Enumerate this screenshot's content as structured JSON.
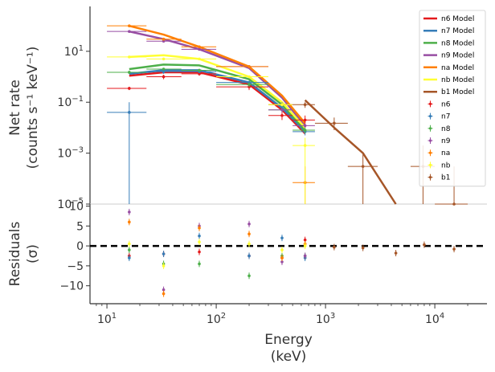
{
  "chart_data": [
    {
      "type": "line",
      "panel": "top",
      "xscale": "log",
      "yscale": "log",
      "xlim": [
        7,
        30000
      ],
      "ylim": [
        1e-05,
        500
      ],
      "ylabel_line1": "Net rate",
      "ylabel_line2": "(counts s⁻¹ keV⁻¹)",
      "yticks": [
        {
          "value": 10,
          "label": "10",
          "sup": "1"
        },
        {
          "value": 0.1,
          "label": "10",
          "sup": "−1"
        },
        {
          "value": 0.001,
          "label": "10",
          "sup": "−3"
        },
        {
          "value": 1e-05,
          "label": "10",
          "sup": "−5"
        }
      ],
      "legend_position": "top-right",
      "models": [
        {
          "name": "n6 Model",
          "color": "#e41a1c",
          "x": [
            16,
            33,
            70,
            200,
            400,
            650
          ],
          "y": [
            1.1,
            1.5,
            1.5,
            0.5,
            0.05,
            0.006
          ]
        },
        {
          "name": "n7 Model",
          "color": "#377eb8",
          "x": [
            16,
            33,
            70,
            200,
            400,
            650
          ],
          "y": [
            1.3,
            1.8,
            1.8,
            0.6,
            0.06,
            0.007
          ]
        },
        {
          "name": "n8 Model",
          "color": "#4daf4a",
          "x": [
            16,
            33,
            70,
            200,
            400,
            650
          ],
          "y": [
            2.0,
            3.0,
            2.8,
            0.8,
            0.08,
            0.008
          ]
        },
        {
          "name": "n9 Model",
          "color": "#984ea3",
          "x": [
            16,
            33,
            70,
            200,
            400,
            650
          ],
          "y": [
            60,
            30,
            12,
            2.2,
            0.15,
            0.012
          ]
        },
        {
          "name": "na Model",
          "color": "#ff7f00",
          "x": [
            16,
            33,
            70,
            200,
            400,
            650
          ],
          "y": [
            100,
            45,
            15,
            2.5,
            0.18,
            0.015
          ]
        },
        {
          "name": "nb Model",
          "color": "#ffff33",
          "x": [
            16,
            33,
            70,
            200,
            400,
            650
          ],
          "y": [
            6,
            7,
            5,
            1.0,
            0.1,
            0.01
          ]
        },
        {
          "name": "b1 Model",
          "color": "#a65628",
          "x": [
            650,
            1200,
            2200,
            4400
          ],
          "y": [
            0.12,
            0.01,
            0.001,
            1e-05
          ]
        }
      ],
      "data": [
        {
          "name": "n6",
          "color": "#e41a1c",
          "points": [
            {
              "x": 16,
              "y": 0.35,
              "xerr": [
                10,
                23
              ],
              "yerr": [
                0.3,
                0.4
              ]
            },
            {
              "x": 33,
              "y": 1.0,
              "xerr": [
                23,
                48
              ],
              "yerr": [
                0.8,
                1.2
              ]
            },
            {
              "x": 70,
              "y": 1.3,
              "xerr": [
                48,
                100
              ],
              "yerr": [
                1.1,
                1.5
              ]
            },
            {
              "x": 200,
              "y": 0.4,
              "xerr": [
                100,
                300
              ],
              "yerr": [
                0.3,
                0.5
              ]
            },
            {
              "x": 400,
              "y": 0.03,
              "xerr": [
                300,
                500
              ],
              "yerr": [
                0.02,
                0.04
              ]
            },
            {
              "x": 650,
              "y": 0.02,
              "xerr": [
                500,
                800
              ],
              "yerr": [
                0.01,
                0.03
              ]
            }
          ]
        },
        {
          "name": "n7",
          "color": "#377eb8",
          "points": [
            {
              "x": 16,
              "y": 0.04,
              "xerr": [
                10,
                23
              ],
              "yerr": [
                1e-05,
                0.1
              ]
            },
            {
              "x": 33,
              "y": 1.6,
              "xerr": [
                23,
                48
              ],
              "yerr": [
                1.3,
                1.9
              ]
            },
            {
              "x": 70,
              "y": 1.6,
              "xerr": [
                48,
                100
              ],
              "yerr": [
                1.4,
                1.8
              ]
            },
            {
              "x": 200,
              "y": 0.6,
              "xerr": [
                100,
                300
              ],
              "yerr": [
                0.5,
                0.7
              ]
            },
            {
              "x": 400,
              "y": 0.08,
              "xerr": [
                300,
                500
              ],
              "yerr": [
                0.06,
                0.1
              ]
            },
            {
              "x": 650,
              "y": 0.007,
              "xerr": [
                500,
                800
              ],
              "yerr": [
                0.005,
                0.009
              ]
            }
          ]
        },
        {
          "name": "n8",
          "color": "#4daf4a",
          "points": [
            {
              "x": 16,
              "y": 1.5,
              "xerr": [
                10,
                23
              ],
              "yerr": [
                1.3,
                1.7
              ]
            },
            {
              "x": 33,
              "y": 2.0,
              "xerr": [
                23,
                48
              ],
              "yerr": [
                1.8,
                2.2
              ]
            },
            {
              "x": 70,
              "y": 1.8,
              "xerr": [
                48,
                100
              ],
              "yerr": [
                1.6,
                2.0
              ]
            },
            {
              "x": 200,
              "y": 0.5,
              "xerr": [
                100,
                300
              ],
              "yerr": [
                0.4,
                0.6
              ]
            },
            {
              "x": 400,
              "y": 0.05,
              "xerr": [
                300,
                500
              ],
              "yerr": [
                0.04,
                0.06
              ]
            },
            {
              "x": 650,
              "y": 0.008,
              "xerr": [
                500,
                800
              ],
              "yerr": [
                0.006,
                0.01
              ]
            }
          ]
        },
        {
          "name": "n9",
          "color": "#984ea3",
          "points": [
            {
              "x": 16,
              "y": 60,
              "xerr": [
                10,
                23
              ],
              "yerr": [
                55,
                65
              ]
            },
            {
              "x": 33,
              "y": 25,
              "xerr": [
                23,
                48
              ],
              "yerr": [
                22,
                28
              ]
            },
            {
              "x": 70,
              "y": 12,
              "xerr": [
                48,
                100
              ],
              "yerr": [
                11,
                13
              ]
            },
            {
              "x": 200,
              "y": 2.5,
              "xerr": [
                100,
                300
              ],
              "yerr": [
                2.2,
                2.8
              ]
            },
            {
              "x": 400,
              "y": 0.05,
              "xerr": [
                300,
                500
              ],
              "yerr": [
                0.04,
                0.06
              ]
            },
            {
              "x": 650,
              "y": 0.012,
              "xerr": [
                500,
                800
              ],
              "yerr": [
                0.01,
                0.014
              ]
            }
          ]
        },
        {
          "name": "na",
          "color": "#ff7f00",
          "points": [
            {
              "x": 16,
              "y": 100,
              "xerr": [
                10,
                23
              ],
              "yerr": [
                90,
                110
              ]
            },
            {
              "x": 33,
              "y": 30,
              "xerr": [
                23,
                48
              ],
              "yerr": [
                27,
                33
              ]
            },
            {
              "x": 70,
              "y": 15,
              "xerr": [
                48,
                100
              ],
              "yerr": [
                14,
                16
              ]
            },
            {
              "x": 200,
              "y": 2.5,
              "xerr": [
                100,
                300
              ],
              "yerr": [
                2.2,
                2.8
              ]
            },
            {
              "x": 400,
              "y": 0.08,
              "xerr": [
                300,
                500
              ],
              "yerr": [
                0.07,
                0.09
              ]
            },
            {
              "x": 650,
              "y": 7e-05,
              "xerr": [
                500,
                800
              ],
              "yerr": [
                1e-05,
                0.0003
              ]
            }
          ]
        },
        {
          "name": "nb",
          "color": "#ffff33",
          "points": [
            {
              "x": 16,
              "y": 6,
              "xerr": [
                10,
                23
              ],
              "yerr": [
                5.5,
                6.5
              ]
            },
            {
              "x": 33,
              "y": 5,
              "xerr": [
                23,
                48
              ],
              "yerr": [
                4.5,
                5.5
              ]
            },
            {
              "x": 70,
              "y": 5,
              "xerr": [
                48,
                100
              ],
              "yerr": [
                4.5,
                5.5
              ]
            },
            {
              "x": 200,
              "y": 1.0,
              "xerr": [
                100,
                300
              ],
              "yerr": [
                0.9,
                1.1
              ]
            },
            {
              "x": 400,
              "y": 0.08,
              "xerr": [
                300,
                500
              ],
              "yerr": [
                0.07,
                0.09
              ]
            },
            {
              "x": 650,
              "y": 0.002,
              "xerr": [
                500,
                800
              ],
              "yerr": [
                1e-05,
                0.004
              ]
            }
          ]
        },
        {
          "name": "b1",
          "color": "#a65628",
          "points": [
            {
              "x": 650,
              "y": 0.08,
              "xerr": [
                500,
                800
              ],
              "yerr": [
                0.06,
                0.1
              ]
            },
            {
              "x": 1200,
              "y": 0.015,
              "xerr": [
                800,
                1600
              ],
              "yerr": [
                0.008,
                0.025
              ]
            },
            {
              "x": 2200,
              "y": 0.0003,
              "xerr": [
                1600,
                3000
              ],
              "yerr": [
                1e-05,
                0.001
              ]
            },
            {
              "x": 7800,
              "y": 0.0003,
              "xerr": [
                6000,
                10000
              ],
              "yerr": [
                1e-05,
                0.002
              ]
            },
            {
              "x": 15000,
              "y": 1e-05,
              "xerr": [
                10000,
                20000
              ],
              "yerr": [
                1e-05,
                0.0003
              ]
            }
          ]
        }
      ]
    },
    {
      "type": "scatter",
      "panel": "bottom",
      "xscale": "log",
      "xlim": [
        7,
        30000
      ],
      "ylim": [
        -14.5,
        10.5
      ],
      "ylabel_line1": "Residuals",
      "ylabel_line2": "(σ)",
      "xlabel_line1": "Energy",
      "xlabel_line2": "(keV)",
      "yticks": [
        10,
        5,
        0,
        -5,
        -10
      ],
      "xticks": [
        {
          "value": 10,
          "label": "10",
          "sup": "1"
        },
        {
          "value": 100,
          "label": "10",
          "sup": "2"
        },
        {
          "value": 1000,
          "label": "10",
          "sup": "3"
        },
        {
          "value": 10000,
          "label": "10",
          "sup": "4"
        }
      ],
      "zero_line": {
        "y": 0,
        "color": "#000000",
        "style": "dashed"
      },
      "series": [
        {
          "name": "n6",
          "color": "#e41a1c",
          "x": [
            16,
            33,
            70,
            200,
            400,
            650
          ],
          "y": [
            -2.5,
            -2.0,
            -1.5,
            -2.5,
            -3.0,
            1.5
          ]
        },
        {
          "name": "n7",
          "color": "#377eb8",
          "x": [
            16,
            33,
            70,
            200,
            400,
            650
          ],
          "y": [
            -3.0,
            -2.0,
            2.5,
            -2.5,
            2.0,
            -3.0
          ]
        },
        {
          "name": "n8",
          "color": "#4daf4a",
          "x": [
            16,
            33,
            70,
            200,
            400,
            650
          ],
          "y": [
            -1.0,
            -4.5,
            -4.5,
            -7.5,
            -2.5,
            -2.5
          ]
        },
        {
          "name": "n9",
          "color": "#984ea3",
          "x": [
            16,
            33,
            70,
            200,
            400,
            650
          ],
          "y": [
            8.5,
            -11.0,
            5.0,
            5.5,
            -4.0,
            -2.5
          ]
        },
        {
          "name": "na",
          "color": "#ff7f00",
          "x": [
            16,
            33,
            70,
            200,
            400,
            650
          ],
          "y": [
            6.0,
            -12.0,
            4.5,
            3.0,
            -3.0,
            0.5
          ]
        },
        {
          "name": "nb",
          "color": "#ffff33",
          "x": [
            16,
            33,
            70,
            200,
            400,
            650
          ],
          "y": [
            0.5,
            -5.0,
            1.0,
            0.5,
            -1.0,
            0.0
          ]
        },
        {
          "name": "b1",
          "color": "#a65628",
          "x": [
            1200,
            2200,
            4400,
            8000,
            15000
          ],
          "y": [
            -0.3,
            -0.5,
            -1.8,
            0.3,
            -0.8
          ]
        }
      ]
    }
  ]
}
